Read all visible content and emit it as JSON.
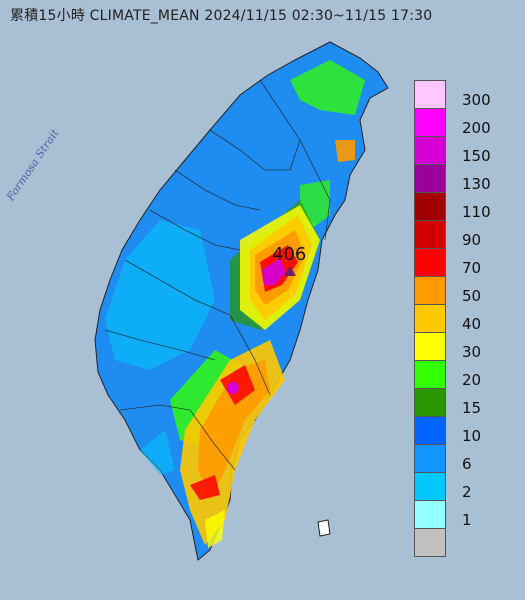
{
  "title": "累積15小時 CLIMATE_MEAN 2024/11/15 02:30~11/15 17:30",
  "strait_label": "Formosa Strait",
  "peak_value": "406",
  "legend": {
    "labels": [
      "300",
      "200",
      "150",
      "130",
      "110",
      "90",
      "70",
      "50",
      "40",
      "30",
      "20",
      "15",
      "10",
      "6",
      "2",
      "1"
    ],
    "colors": [
      "#ffc6ff",
      "#ff00ff",
      "#d400d4",
      "#9c009c",
      "#a00000",
      "#d40000",
      "#ff0000",
      "#ff9a00",
      "#ffc800",
      "#ffff00",
      "#33ff00",
      "#2a9600",
      "#0064ff",
      "#1496ff",
      "#00c8ff",
      "#96ffff",
      "#c0c0c0"
    ]
  },
  "colors": {
    "sea": "#a9bfd3",
    "land_base": "#1e8cf0"
  }
}
